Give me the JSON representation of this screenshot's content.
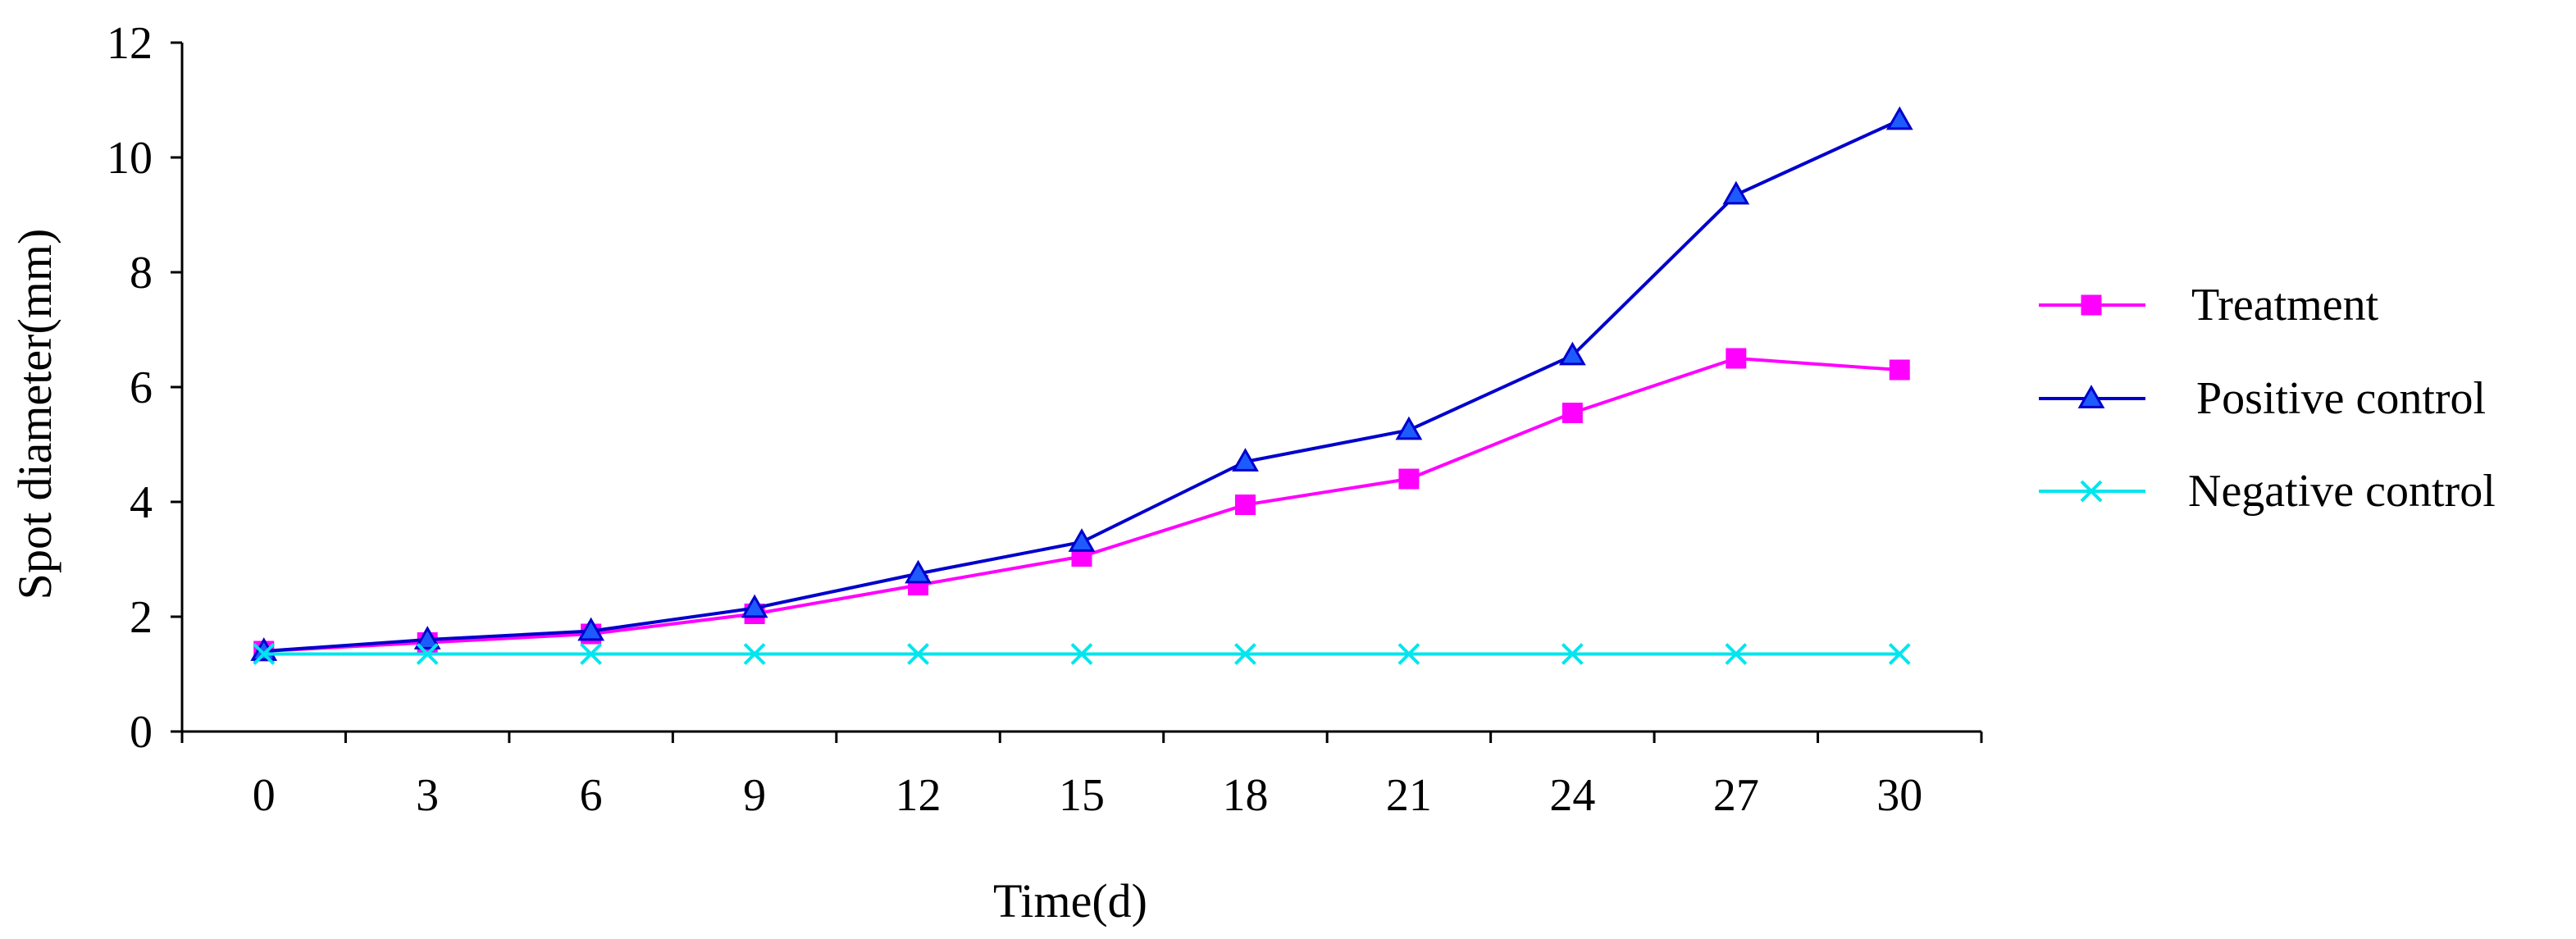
{
  "chart_data": {
    "type": "line",
    "title": "",
    "xlabel": "Time(d)",
    "ylabel": "Spot diameter(mm)",
    "categories": [
      "0",
      "3",
      "6",
      "9",
      "12",
      "15",
      "18",
      "21",
      "24",
      "27",
      "30"
    ],
    "yticks": [
      "0",
      "2",
      "4",
      "6",
      "8",
      "10",
      "12"
    ],
    "ylim": [
      0,
      12
    ],
    "grid": false,
    "legend_position": "right",
    "series": [
      {
        "name": "Treatment",
        "color": "#FF00FF",
        "marker": "square",
        "values": [
          1.4,
          1.55,
          1.7,
          2.05,
          2.55,
          3.05,
          3.95,
          4.4,
          5.55,
          6.5,
          6.3
        ]
      },
      {
        "name": "Positive control",
        "color": "#0000CC",
        "marker_fill": "#1E5BFF",
        "marker": "triangle",
        "values": [
          1.4,
          1.6,
          1.75,
          2.15,
          2.75,
          3.3,
          4.7,
          5.25,
          6.55,
          9.35,
          10.65
        ]
      },
      {
        "name": "Negative control",
        "color": "#00E5EE",
        "marker": "x",
        "values": [
          1.35,
          1.35,
          1.35,
          1.35,
          1.35,
          1.35,
          1.35,
          1.35,
          1.35,
          1.35,
          1.35
        ]
      }
    ]
  }
}
